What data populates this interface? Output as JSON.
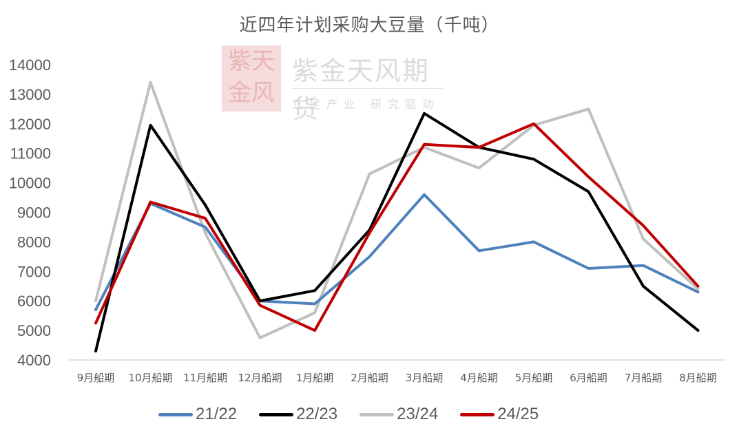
{
  "chart_data": {
    "type": "line",
    "title": "近四年计划采购大豆量（千吨）",
    "xlabel": "",
    "ylabel": "",
    "ylim": [
      4000,
      14000
    ],
    "yticks": [
      4000,
      5000,
      6000,
      7000,
      8000,
      9000,
      10000,
      11000,
      12000,
      13000,
      14000
    ],
    "grid": false,
    "legend_position": "bottom",
    "categories": [
      "9月船期",
      "10月船期",
      "11月船期",
      "12月船期",
      "1月船期",
      "2月船期",
      "3月船期",
      "4月船期",
      "5月船期",
      "6月船期",
      "7月船期",
      "8月船期"
    ],
    "series": [
      {
        "name": "21/22",
        "color": "#4f81bd",
        "values": [
          5700,
          9300,
          8500,
          6000,
          5900,
          7500,
          9600,
          7700,
          8000,
          7100,
          7200,
          6300
        ]
      },
      {
        "name": "22/23",
        "color": "#000000",
        "values": [
          4300,
          11950,
          9250,
          6000,
          6350,
          8400,
          12350,
          11200,
          10800,
          9700,
          6500,
          5000
        ]
      },
      {
        "name": "23/24",
        "color": "#c0c0c0",
        "values": [
          6000,
          13400,
          8300,
          4750,
          5600,
          10300,
          11200,
          10500,
          11950,
          12500,
          8100,
          6400
        ]
      },
      {
        "name": "24/25",
        "color": "#c00000",
        "values": [
          5250,
          9350,
          8800,
          5850,
          5000,
          8300,
          11300,
          11200,
          12000,
          10200,
          8550,
          6500
        ]
      }
    ]
  },
  "watermark": {
    "seal_chars": [
      "紫",
      "天",
      "金",
      "风"
    ],
    "name": "紫金天风期货",
    "slogan": "立足产业 研究驱动"
  }
}
